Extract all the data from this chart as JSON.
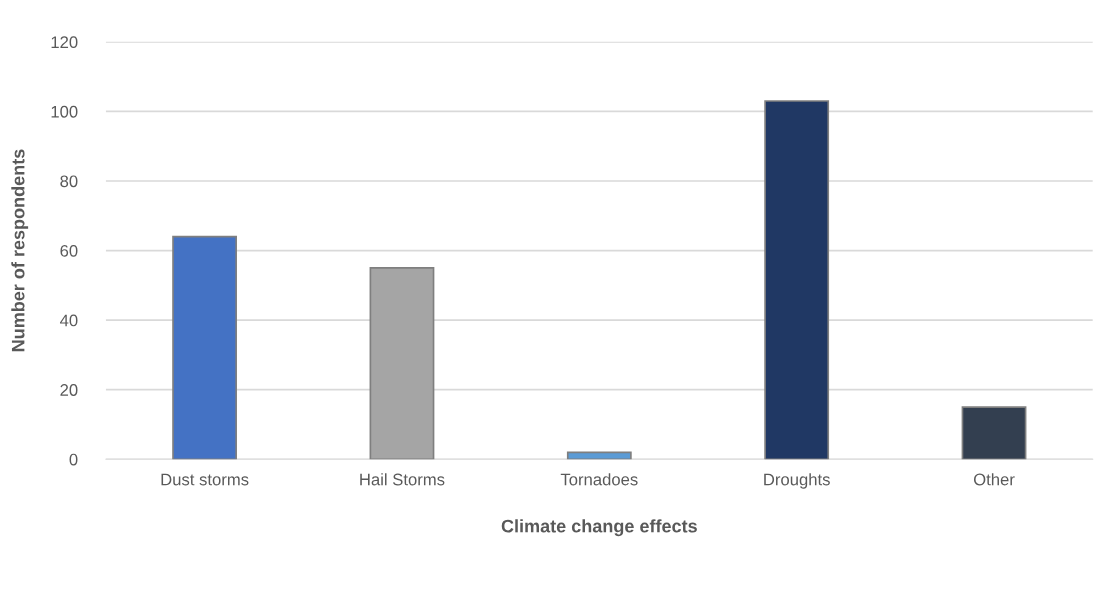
{
  "chart_data": {
    "type": "bar",
    "xlabel": "Climate change effects",
    "ylabel": "Number of respondents",
    "categories": [
      "Dust storms",
      "Hail Storms",
      "Tornadoes",
      "Droughts",
      "Other"
    ],
    "values": [
      64,
      55,
      2,
      103,
      15
    ],
    "colors": [
      "#4472c4",
      "#a5a5a5",
      "#5b9bd5",
      "#203864",
      "#333f50"
    ],
    "ylim": [
      0,
      120
    ],
    "yticks": [
      0,
      20,
      40,
      60,
      80,
      100,
      120
    ],
    "grid": "y"
  }
}
